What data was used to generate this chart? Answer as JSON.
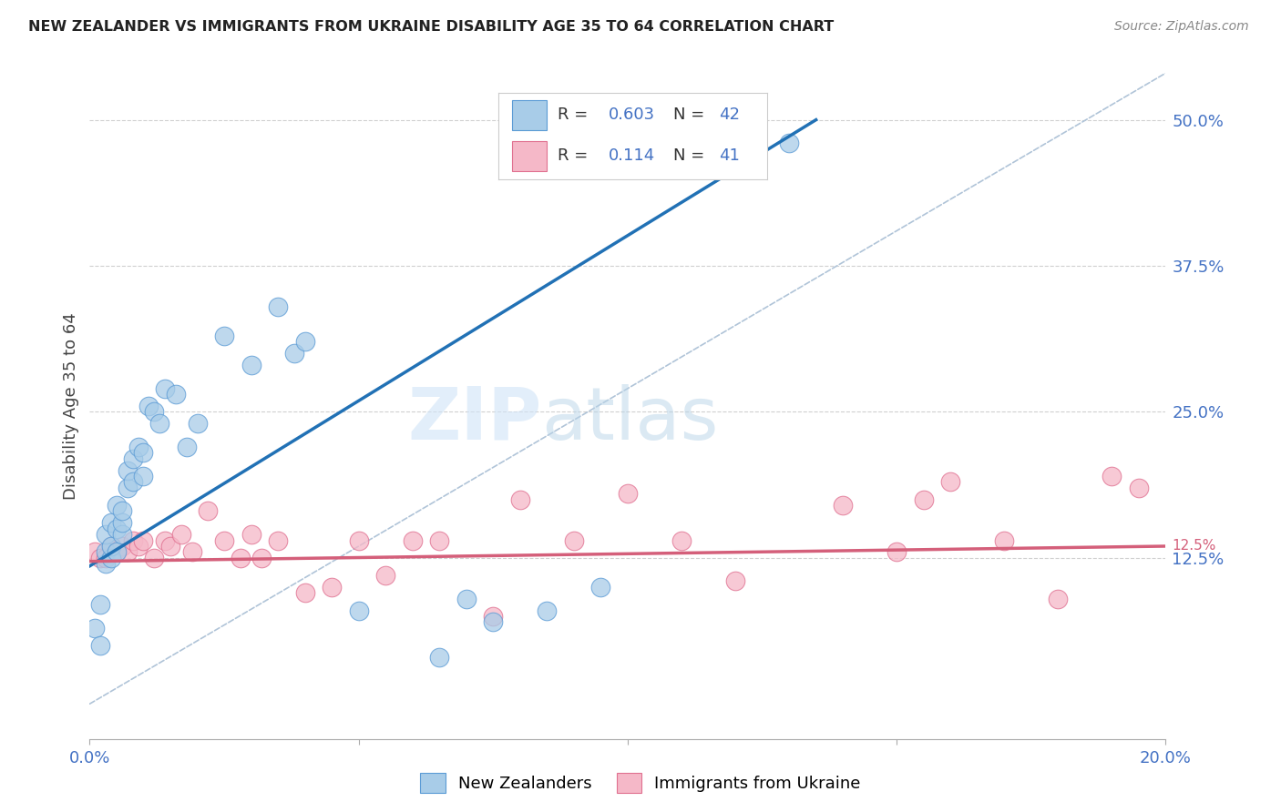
{
  "title": "NEW ZEALANDER VS IMMIGRANTS FROM UKRAINE DISABILITY AGE 35 TO 64 CORRELATION CHART",
  "source": "Source: ZipAtlas.com",
  "ylabel_label": "Disability Age 35 to 64",
  "xlim": [
    0.0,
    0.2
  ],
  "ylim": [
    -0.03,
    0.54
  ],
  "nz_R": 0.603,
  "nz_N": 42,
  "uk_R": 0.114,
  "uk_N": 41,
  "nz_color": "#a8cce8",
  "uk_color": "#f5b8c8",
  "nz_edge_color": "#5b9bd5",
  "uk_edge_color": "#e07090",
  "nz_line_color": "#2171b5",
  "uk_line_color": "#d45f7a",
  "diagonal_color": "#b0c4d8",
  "grid_color": "#d0d0d0",
  "background_color": "#ffffff",
  "nz_line_x0": 0.0,
  "nz_line_y0": 0.118,
  "nz_line_x1": 0.135,
  "nz_line_y1": 0.5,
  "uk_line_x0": 0.0,
  "uk_line_y0": 0.122,
  "uk_line_x1": 0.2,
  "uk_line_y1": 0.135,
  "nz_scatter_x": [
    0.001,
    0.002,
    0.002,
    0.003,
    0.003,
    0.003,
    0.004,
    0.004,
    0.004,
    0.005,
    0.005,
    0.005,
    0.006,
    0.006,
    0.006,
    0.007,
    0.007,
    0.008,
    0.008,
    0.009,
    0.01,
    0.01,
    0.011,
    0.012,
    0.013,
    0.014,
    0.016,
    0.018,
    0.02,
    0.025,
    0.03,
    0.035,
    0.038,
    0.04,
    0.05,
    0.065,
    0.07,
    0.075,
    0.085,
    0.095,
    0.11,
    0.13
  ],
  "nz_scatter_y": [
    0.065,
    0.05,
    0.085,
    0.12,
    0.13,
    0.145,
    0.125,
    0.135,
    0.155,
    0.13,
    0.15,
    0.17,
    0.145,
    0.155,
    0.165,
    0.185,
    0.2,
    0.19,
    0.21,
    0.22,
    0.195,
    0.215,
    0.255,
    0.25,
    0.24,
    0.27,
    0.265,
    0.22,
    0.24,
    0.315,
    0.29,
    0.34,
    0.3,
    0.31,
    0.08,
    0.04,
    0.09,
    0.07,
    0.08,
    0.1,
    0.46,
    0.48
  ],
  "uk_scatter_x": [
    0.001,
    0.002,
    0.003,
    0.004,
    0.005,
    0.006,
    0.007,
    0.008,
    0.009,
    0.01,
    0.012,
    0.014,
    0.015,
    0.017,
    0.019,
    0.022,
    0.025,
    0.028,
    0.03,
    0.032,
    0.035,
    0.04,
    0.045,
    0.05,
    0.055,
    0.06,
    0.065,
    0.075,
    0.08,
    0.09,
    0.1,
    0.11,
    0.12,
    0.14,
    0.15,
    0.155,
    0.16,
    0.17,
    0.18,
    0.19,
    0.195
  ],
  "uk_scatter_y": [
    0.13,
    0.125,
    0.125,
    0.135,
    0.13,
    0.135,
    0.13,
    0.14,
    0.135,
    0.14,
    0.125,
    0.14,
    0.135,
    0.145,
    0.13,
    0.165,
    0.14,
    0.125,
    0.145,
    0.125,
    0.14,
    0.095,
    0.1,
    0.14,
    0.11,
    0.14,
    0.14,
    0.075,
    0.175,
    0.14,
    0.18,
    0.14,
    0.105,
    0.17,
    0.13,
    0.175,
    0.19,
    0.14,
    0.09,
    0.195,
    0.185
  ]
}
